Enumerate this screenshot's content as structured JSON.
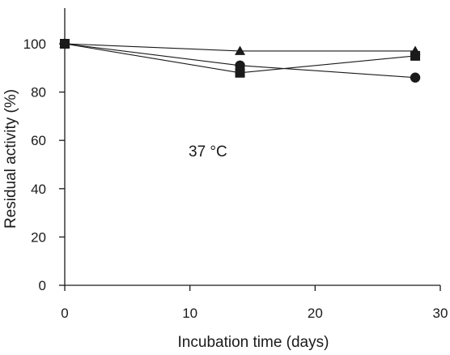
{
  "chart_data": {
    "type": "line",
    "title": "",
    "xlabel": "Incubation time (days)",
    "ylabel": "Residual activity (%)",
    "xlim": [
      0,
      30
    ],
    "ylim": [
      0,
      100
    ],
    "xticks": [
      "0",
      "10",
      "20",
      "30"
    ],
    "yticks": [
      "0",
      "20",
      "40",
      "60",
      "80",
      "100"
    ],
    "grid": false,
    "legend": "none",
    "annotation": "37 °C",
    "series": [
      {
        "marker": "triangle",
        "x": [
          0,
          14,
          28
        ],
        "y": [
          100,
          97,
          97
        ]
      },
      {
        "marker": "circle",
        "x": [
          0,
          14,
          28
        ],
        "y": [
          100,
          91,
          86
        ]
      },
      {
        "marker": "square",
        "x": [
          0,
          14,
          28
        ],
        "y": [
          100,
          88,
          95
        ]
      }
    ],
    "colors": {
      "ink": "#1a1a1a"
    }
  }
}
